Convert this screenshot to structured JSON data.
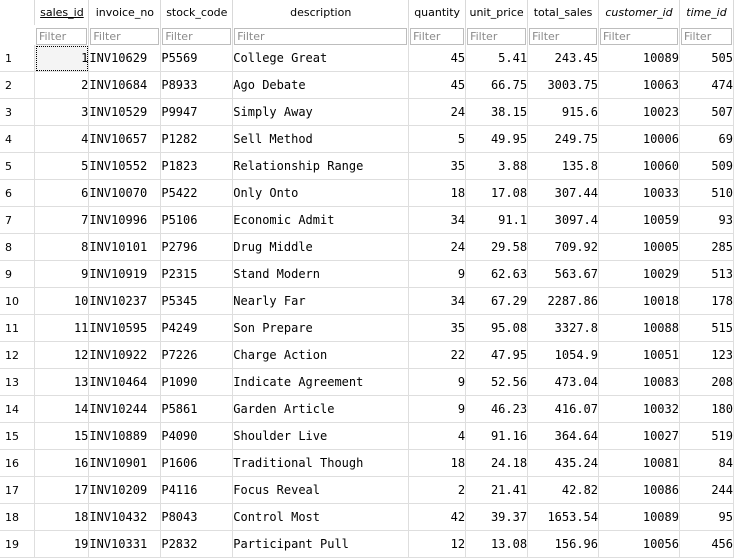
{
  "columns": [
    {
      "key": "sales_id",
      "label": "sales_id",
      "align": "num",
      "italic": false,
      "sorted": true
    },
    {
      "key": "invoice_no",
      "label": "invoice_no",
      "align": "txt",
      "italic": false,
      "sorted": false
    },
    {
      "key": "stock_code",
      "label": "stock_code",
      "align": "txt",
      "italic": false,
      "sorted": false
    },
    {
      "key": "description",
      "label": "description",
      "align": "txt",
      "italic": false,
      "sorted": false
    },
    {
      "key": "quantity",
      "label": "quantity",
      "align": "num",
      "italic": false,
      "sorted": false
    },
    {
      "key": "unit_price",
      "label": "unit_price",
      "align": "num",
      "italic": false,
      "sorted": false
    },
    {
      "key": "total_sales",
      "label": "total_sales",
      "align": "num",
      "italic": false,
      "sorted": false
    },
    {
      "key": "customer_id",
      "label": "customer_id",
      "align": "num",
      "italic": true,
      "sorted": false
    },
    {
      "key": "time_id",
      "label": "time_id",
      "align": "num",
      "italic": true,
      "sorted": false
    }
  ],
  "filter_placeholder": "Filter",
  "rows": [
    [
      "1",
      "INV10629",
      "P5569",
      "College Great",
      "45",
      "5.41",
      "243.45",
      "10089",
      "505"
    ],
    [
      "2",
      "INV10684",
      "P8933",
      "Ago Debate",
      "45",
      "66.75",
      "3003.75",
      "10063",
      "474"
    ],
    [
      "3",
      "INV10529",
      "P9947",
      "Simply Away",
      "24",
      "38.15",
      "915.6",
      "10023",
      "507"
    ],
    [
      "4",
      "INV10657",
      "P1282",
      "Sell Method",
      "5",
      "49.95",
      "249.75",
      "10006",
      "69"
    ],
    [
      "5",
      "INV10552",
      "P1823",
      "Relationship Range",
      "35",
      "3.88",
      "135.8",
      "10060",
      "509"
    ],
    [
      "6",
      "INV10070",
      "P5422",
      "Only Onto",
      "18",
      "17.08",
      "307.44",
      "10033",
      "510"
    ],
    [
      "7",
      "INV10996",
      "P5106",
      "Economic Admit",
      "34",
      "91.1",
      "3097.4",
      "10059",
      "93"
    ],
    [
      "8",
      "INV10101",
      "P2796",
      "Drug Middle",
      "24",
      "29.58",
      "709.92",
      "10005",
      "285"
    ],
    [
      "9",
      "INV10919",
      "P2315",
      "Stand Modern",
      "9",
      "62.63",
      "563.67",
      "10029",
      "513"
    ],
    [
      "10",
      "INV10237",
      "P5345",
      "Nearly Far",
      "34",
      "67.29",
      "2287.86",
      "10018",
      "178"
    ],
    [
      "11",
      "INV10595",
      "P4249",
      "Son Prepare",
      "35",
      "95.08",
      "3327.8",
      "10088",
      "515"
    ],
    [
      "12",
      "INV10922",
      "P7226",
      "Charge Action",
      "22",
      "47.95",
      "1054.9",
      "10051",
      "123"
    ],
    [
      "13",
      "INV10464",
      "P1090",
      "Indicate Agreement",
      "9",
      "52.56",
      "473.04",
      "10083",
      "208"
    ],
    [
      "14",
      "INV10244",
      "P5861",
      "Garden Article",
      "9",
      "46.23",
      "416.07",
      "10032",
      "180"
    ],
    [
      "15",
      "INV10889",
      "P4090",
      "Shoulder Live",
      "4",
      "91.16",
      "364.64",
      "10027",
      "519"
    ],
    [
      "16",
      "INV10901",
      "P1606",
      "Traditional Though",
      "18",
      "24.18",
      "435.24",
      "10081",
      "84"
    ],
    [
      "17",
      "INV10209",
      "P4116",
      "Focus Reveal",
      "2",
      "21.41",
      "42.82",
      "10086",
      "244"
    ],
    [
      "18",
      "INV10432",
      "P8043",
      "Control Most",
      "42",
      "39.37",
      "1653.54",
      "10089",
      "95"
    ],
    [
      "19",
      "INV10331",
      "P2832",
      "Participant Pull",
      "12",
      "13.08",
      "156.96",
      "10056",
      "456"
    ]
  ]
}
